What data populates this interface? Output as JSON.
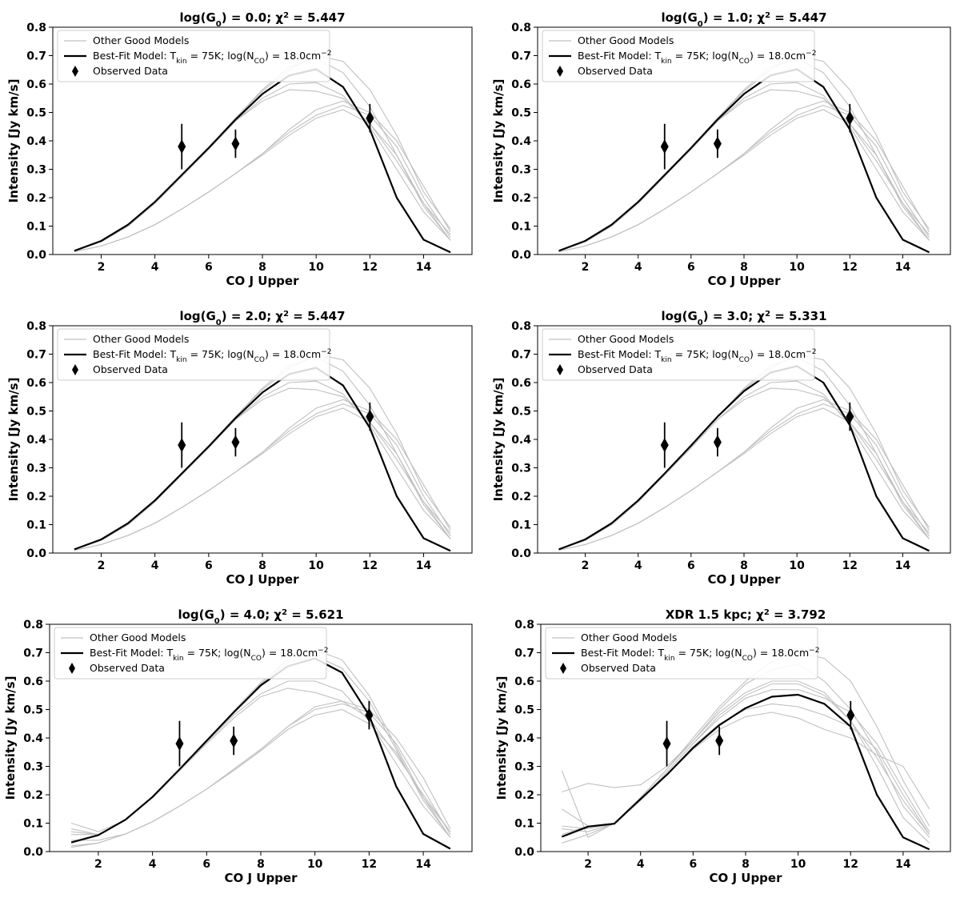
{
  "shared": {
    "xlabel": "CO J Upper",
    "ylabel": "Intensity [Jy km/s]",
    "xlim": [
      0.2,
      15.8
    ],
    "ylim": [
      0.0,
      0.8
    ],
    "xticks": [
      2,
      4,
      6,
      8,
      10,
      12,
      14
    ],
    "yticks": [
      0.0,
      0.1,
      0.2,
      0.3,
      0.4,
      0.5,
      0.6,
      0.7,
      0.8
    ],
    "legend_placement": "upper-left",
    "legend": {
      "other": "Other Good Models",
      "best_prefix": "Best-Fit Model: T",
      "best_kin_sub": "kin",
      "best_mid": " = 75K; log(N",
      "best_co_sub": "CO",
      "best_mid2": ") = 18.0cm",
      "best_sup": "−2",
      "observed": "Observed Data"
    },
    "colors": {
      "best": "#000000",
      "other": "#c0c0c0",
      "observed": "#000000"
    }
  },
  "chart_data": [
    {
      "type": "line",
      "title": {
        "pre": "log(G",
        "sub": "0",
        "post": ") = 0.0; χ",
        "sup": "2",
        "tail": " = 5.447"
      },
      "x": [
        1,
        2,
        3,
        4,
        5,
        6,
        7,
        8,
        9,
        10,
        11,
        12,
        13,
        14,
        15
      ],
      "best_fit": [
        0.013,
        0.048,
        0.105,
        0.185,
        0.28,
        0.375,
        0.475,
        0.565,
        0.63,
        0.652,
        0.59,
        0.44,
        0.2,
        0.052,
        0.008
      ],
      "other_models": [
        [
          0.012,
          0.045,
          0.1,
          0.18,
          0.275,
          0.375,
          0.48,
          0.575,
          0.65,
          0.7,
          0.68,
          0.58,
          0.42,
          0.22,
          0.09
        ],
        [
          0.012,
          0.045,
          0.1,
          0.18,
          0.275,
          0.37,
          0.47,
          0.55,
          0.6,
          0.605,
          0.56,
          0.45,
          0.3,
          0.15,
          0.05
        ],
        [
          0.012,
          0.045,
          0.1,
          0.18,
          0.275,
          0.37,
          0.47,
          0.54,
          0.58,
          0.575,
          0.55,
          0.46,
          0.33,
          0.18,
          0.07
        ],
        [
          0.012,
          0.045,
          0.1,
          0.18,
          0.275,
          0.375,
          0.48,
          0.58,
          0.66,
          0.69,
          0.64,
          0.52,
          0.35,
          0.17,
          0.05
        ],
        [
          0.01,
          0.03,
          0.062,
          0.105,
          0.16,
          0.22,
          0.285,
          0.355,
          0.43,
          0.49,
          0.525,
          0.49,
          0.38,
          0.2,
          0.06
        ],
        [
          0.01,
          0.03,
          0.062,
          0.105,
          0.16,
          0.22,
          0.285,
          0.355,
          0.44,
          0.51,
          0.54,
          0.5,
          0.4,
          0.24,
          0.08
        ],
        [
          0.01,
          0.03,
          0.062,
          0.105,
          0.16,
          0.22,
          0.285,
          0.35,
          0.42,
          0.48,
          0.51,
          0.46,
          0.35,
          0.18,
          0.05
        ]
      ],
      "observed": {
        "x": [
          5,
          7,
          12
        ],
        "y": [
          0.38,
          0.39,
          0.48
        ],
        "yerr": [
          0.08,
          0.05,
          0.05
        ]
      }
    },
    {
      "type": "line",
      "title": {
        "pre": "log(G",
        "sub": "0",
        "post": ") = 1.0; χ",
        "sup": "2",
        "tail": " = 5.447"
      },
      "x": [
        1,
        2,
        3,
        4,
        5,
        6,
        7,
        8,
        9,
        10,
        11,
        12,
        13,
        14,
        15
      ],
      "best_fit": [
        0.013,
        0.048,
        0.105,
        0.185,
        0.28,
        0.375,
        0.475,
        0.565,
        0.63,
        0.652,
        0.59,
        0.44,
        0.2,
        0.052,
        0.008
      ],
      "other_models": [
        [
          0.012,
          0.045,
          0.1,
          0.18,
          0.275,
          0.375,
          0.48,
          0.575,
          0.65,
          0.7,
          0.68,
          0.58,
          0.42,
          0.22,
          0.09
        ],
        [
          0.012,
          0.045,
          0.1,
          0.18,
          0.275,
          0.37,
          0.47,
          0.55,
          0.6,
          0.605,
          0.56,
          0.45,
          0.3,
          0.15,
          0.05
        ],
        [
          0.012,
          0.045,
          0.1,
          0.18,
          0.275,
          0.37,
          0.47,
          0.54,
          0.58,
          0.575,
          0.55,
          0.46,
          0.33,
          0.18,
          0.07
        ],
        [
          0.012,
          0.045,
          0.1,
          0.18,
          0.275,
          0.375,
          0.48,
          0.58,
          0.66,
          0.69,
          0.64,
          0.52,
          0.35,
          0.17,
          0.05
        ],
        [
          0.01,
          0.03,
          0.062,
          0.105,
          0.16,
          0.22,
          0.285,
          0.355,
          0.43,
          0.49,
          0.525,
          0.49,
          0.38,
          0.2,
          0.06
        ],
        [
          0.01,
          0.03,
          0.062,
          0.105,
          0.16,
          0.22,
          0.285,
          0.355,
          0.44,
          0.51,
          0.54,
          0.5,
          0.4,
          0.24,
          0.08
        ],
        [
          0.01,
          0.03,
          0.062,
          0.105,
          0.16,
          0.22,
          0.285,
          0.35,
          0.42,
          0.48,
          0.51,
          0.46,
          0.35,
          0.18,
          0.05
        ]
      ],
      "observed": {
        "x": [
          5,
          7,
          12
        ],
        "y": [
          0.38,
          0.39,
          0.48
        ],
        "yerr": [
          0.08,
          0.05,
          0.05
        ]
      }
    },
    {
      "type": "line",
      "title": {
        "pre": "log(G",
        "sub": "0",
        "post": ") = 2.0; χ",
        "sup": "2",
        "tail": " = 5.447"
      },
      "x": [
        1,
        2,
        3,
        4,
        5,
        6,
        7,
        8,
        9,
        10,
        11,
        12,
        13,
        14,
        15
      ],
      "best_fit": [
        0.013,
        0.048,
        0.105,
        0.185,
        0.28,
        0.375,
        0.475,
        0.565,
        0.63,
        0.652,
        0.59,
        0.44,
        0.2,
        0.052,
        0.008
      ],
      "other_models": [
        [
          0.012,
          0.045,
          0.1,
          0.18,
          0.275,
          0.375,
          0.48,
          0.575,
          0.65,
          0.7,
          0.68,
          0.58,
          0.42,
          0.22,
          0.09
        ],
        [
          0.012,
          0.045,
          0.1,
          0.18,
          0.275,
          0.37,
          0.47,
          0.55,
          0.6,
          0.605,
          0.56,
          0.45,
          0.3,
          0.15,
          0.05
        ],
        [
          0.012,
          0.045,
          0.1,
          0.18,
          0.275,
          0.37,
          0.47,
          0.54,
          0.58,
          0.575,
          0.55,
          0.46,
          0.33,
          0.18,
          0.07
        ],
        [
          0.012,
          0.045,
          0.1,
          0.18,
          0.275,
          0.375,
          0.48,
          0.58,
          0.66,
          0.69,
          0.64,
          0.52,
          0.35,
          0.17,
          0.05
        ],
        [
          0.01,
          0.03,
          0.062,
          0.105,
          0.16,
          0.22,
          0.285,
          0.355,
          0.43,
          0.49,
          0.525,
          0.49,
          0.38,
          0.2,
          0.06
        ],
        [
          0.01,
          0.03,
          0.062,
          0.105,
          0.16,
          0.22,
          0.285,
          0.355,
          0.44,
          0.51,
          0.54,
          0.5,
          0.4,
          0.24,
          0.08
        ],
        [
          0.01,
          0.03,
          0.062,
          0.105,
          0.16,
          0.22,
          0.285,
          0.35,
          0.42,
          0.48,
          0.51,
          0.46,
          0.35,
          0.18,
          0.05
        ]
      ],
      "observed": {
        "x": [
          5,
          7,
          12
        ],
        "y": [
          0.38,
          0.39,
          0.48
        ],
        "yerr": [
          0.08,
          0.05,
          0.05
        ]
      }
    },
    {
      "type": "line",
      "title": {
        "pre": "log(G",
        "sub": "0",
        "post": ") = 3.0; χ",
        "sup": "2",
        "tail": " = 5.331"
      },
      "x": [
        1,
        2,
        3,
        4,
        5,
        6,
        7,
        8,
        9,
        10,
        11,
        12,
        13,
        14,
        15
      ],
      "best_fit": [
        0.013,
        0.048,
        0.105,
        0.185,
        0.28,
        0.378,
        0.48,
        0.57,
        0.635,
        0.658,
        0.6,
        0.45,
        0.2,
        0.052,
        0.008
      ],
      "other_models": [
        [
          0.012,
          0.045,
          0.1,
          0.18,
          0.275,
          0.375,
          0.48,
          0.575,
          0.65,
          0.7,
          0.68,
          0.58,
          0.42,
          0.22,
          0.09
        ],
        [
          0.012,
          0.045,
          0.1,
          0.18,
          0.275,
          0.37,
          0.47,
          0.55,
          0.6,
          0.605,
          0.56,
          0.45,
          0.3,
          0.15,
          0.05
        ],
        [
          0.012,
          0.045,
          0.1,
          0.18,
          0.275,
          0.37,
          0.47,
          0.54,
          0.58,
          0.575,
          0.55,
          0.46,
          0.33,
          0.18,
          0.07
        ],
        [
          0.012,
          0.045,
          0.1,
          0.18,
          0.275,
          0.375,
          0.48,
          0.58,
          0.66,
          0.69,
          0.64,
          0.52,
          0.35,
          0.17,
          0.05
        ],
        [
          0.01,
          0.03,
          0.062,
          0.105,
          0.16,
          0.22,
          0.285,
          0.355,
          0.43,
          0.49,
          0.525,
          0.49,
          0.38,
          0.2,
          0.06
        ],
        [
          0.01,
          0.03,
          0.062,
          0.105,
          0.16,
          0.22,
          0.285,
          0.355,
          0.44,
          0.51,
          0.54,
          0.5,
          0.4,
          0.24,
          0.08
        ],
        [
          0.01,
          0.03,
          0.062,
          0.105,
          0.16,
          0.22,
          0.285,
          0.35,
          0.42,
          0.48,
          0.51,
          0.46,
          0.35,
          0.18,
          0.05
        ]
      ],
      "observed": {
        "x": [
          5,
          7,
          12
        ],
        "y": [
          0.38,
          0.39,
          0.48
        ],
        "yerr": [
          0.08,
          0.05,
          0.05
        ]
      }
    },
    {
      "type": "line",
      "title": {
        "pre": "log(G",
        "sub": "0",
        "post": ") = 4.0; χ",
        "sup": "2",
        "tail": " = 5.621"
      },
      "x": [
        1,
        2,
        3,
        4,
        5,
        6,
        7,
        8,
        9,
        10,
        11,
        12,
        13,
        14,
        15
      ],
      "best_fit": [
        0.032,
        0.058,
        0.112,
        0.192,
        0.29,
        0.39,
        0.49,
        0.585,
        0.652,
        0.68,
        0.63,
        0.48,
        0.23,
        0.062,
        0.01
      ],
      "other_models": [
        [
          0.1,
          0.07,
          0.11,
          0.19,
          0.29,
          0.39,
          0.495,
          0.595,
          0.675,
          0.71,
          0.675,
          0.55,
          0.37,
          0.19,
          0.07
        ],
        [
          0.08,
          0.06,
          0.11,
          0.19,
          0.285,
          0.385,
          0.48,
          0.555,
          0.6,
          0.6,
          0.565,
          0.46,
          0.31,
          0.16,
          0.05
        ],
        [
          0.07,
          0.06,
          0.11,
          0.19,
          0.285,
          0.38,
          0.47,
          0.545,
          0.575,
          0.56,
          0.53,
          0.47,
          0.34,
          0.2,
          0.07
        ],
        [
          0.06,
          0.06,
          0.112,
          0.192,
          0.29,
          0.39,
          0.49,
          0.59,
          0.665,
          0.69,
          0.645,
          0.53,
          0.36,
          0.18,
          0.05
        ],
        [
          0.015,
          0.03,
          0.062,
          0.105,
          0.16,
          0.22,
          0.29,
          0.36,
          0.44,
          0.5,
          0.52,
          0.49,
          0.38,
          0.22,
          0.06
        ],
        [
          0.02,
          0.03,
          0.062,
          0.105,
          0.16,
          0.22,
          0.29,
          0.36,
          0.44,
          0.51,
          0.53,
          0.5,
          0.4,
          0.26,
          0.08
        ],
        [
          0.04,
          0.04,
          0.062,
          0.105,
          0.16,
          0.22,
          0.285,
          0.355,
          0.43,
          0.48,
          0.5,
          0.45,
          0.35,
          0.19,
          0.05
        ]
      ],
      "observed": {
        "x": [
          5,
          7,
          12
        ],
        "y": [
          0.38,
          0.39,
          0.48
        ],
        "yerr": [
          0.08,
          0.05,
          0.05
        ]
      }
    },
    {
      "type": "line",
      "title": {
        "pre": "XDR 1.5 kpc; χ",
        "sub": "",
        "post": "",
        "sup": "2",
        "tail": " = 3.792"
      },
      "x": [
        1,
        2,
        3,
        4,
        5,
        6,
        7,
        8,
        9,
        10,
        11,
        12,
        13,
        14,
        15
      ],
      "best_fit": [
        0.052,
        0.088,
        0.098,
        0.185,
        0.27,
        0.365,
        0.445,
        0.505,
        0.545,
        0.552,
        0.52,
        0.44,
        0.2,
        0.05,
        0.008
      ],
      "other_models": [
        [
          0.285,
          0.05,
          0.1,
          0.19,
          0.29,
          0.4,
          0.51,
          0.6,
          0.67,
          0.7,
          0.68,
          0.6,
          0.44,
          0.25,
          0.09
        ],
        [
          0.21,
          0.24,
          0.225,
          0.235,
          0.3,
          0.39,
          0.49,
          0.56,
          0.6,
          0.6,
          0.56,
          0.46,
          0.3,
          0.12,
          0.03
        ],
        [
          0.15,
          0.09,
          0.1,
          0.18,
          0.28,
          0.38,
          0.48,
          0.55,
          0.59,
          0.59,
          0.55,
          0.46,
          0.33,
          0.18,
          0.06
        ],
        [
          0.09,
          0.08,
          0.1,
          0.19,
          0.29,
          0.39,
          0.5,
          0.59,
          0.64,
          0.66,
          0.6,
          0.5,
          0.35,
          0.16,
          0.05
        ],
        [
          0.03,
          0.06,
          0.1,
          0.18,
          0.27,
          0.36,
          0.43,
          0.475,
          0.49,
          0.47,
          0.43,
          0.4,
          0.34,
          0.3,
          0.15
        ],
        [
          0.08,
          0.07,
          0.1,
          0.18,
          0.27,
          0.37,
          0.45,
          0.5,
          0.52,
          0.51,
          0.48,
          0.44,
          0.36,
          0.2,
          0.06
        ],
        [
          0.06,
          0.09,
          0.1,
          0.18,
          0.28,
          0.38,
          0.47,
          0.54,
          0.57,
          0.57,
          0.54,
          0.49,
          0.38,
          0.22,
          0.07
        ]
      ],
      "observed": {
        "x": [
          5,
          7,
          12
        ],
        "y": [
          0.38,
          0.39,
          0.48
        ],
        "yerr": [
          0.08,
          0.05,
          0.05
        ]
      }
    }
  ]
}
